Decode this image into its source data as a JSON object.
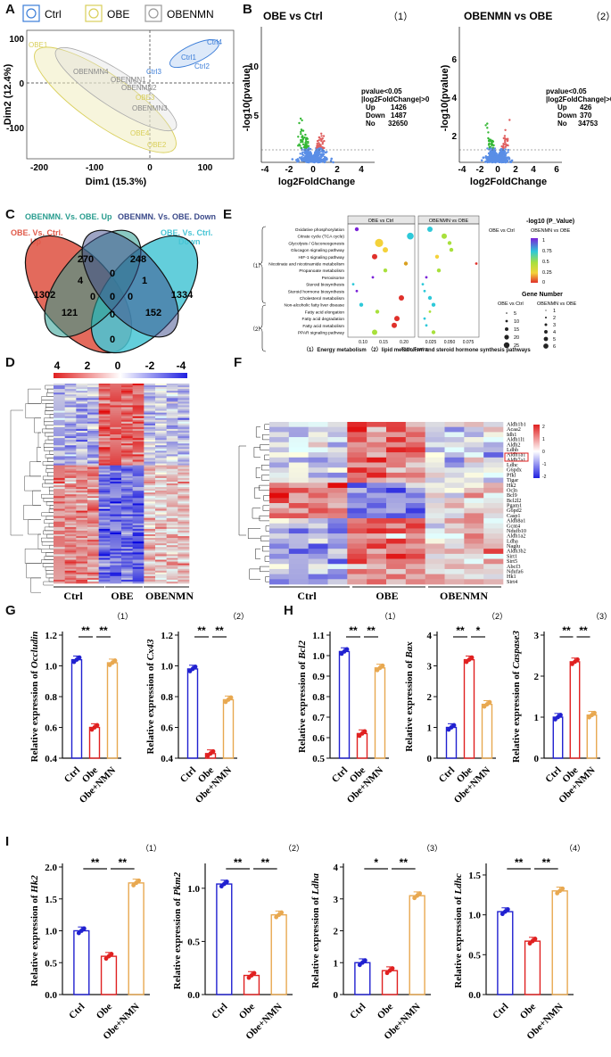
{
  "panels": {
    "A": "A",
    "B": "B",
    "C": "C",
    "D": "D",
    "E": "E",
    "F": "F",
    "G": "G",
    "H": "H",
    "I": "I"
  },
  "colors": {
    "ctrl": "#3b7dd8",
    "obe": "#d9cf5a",
    "obenmn": "#999999",
    "up": "#e05050",
    "down": "#2db52d",
    "ns": "#5a8ee6",
    "bar_ctrl": "#2020d0",
    "bar_obe": "#e02020",
    "bar_nmn": "#e8a850"
  },
  "panelA": {
    "legend": [
      "Ctrl",
      "OBE",
      "OBENMN"
    ],
    "xlabel": "Dim1 (15.3%)",
    "ylabel": "Dim2 (12.4%)",
    "xticks": [
      "-200",
      "-100",
      "0",
      "100"
    ],
    "yticks": [
      "100",
      "0",
      "-100"
    ],
    "point_labels": {
      "ctrl": [
        "Ctrl4",
        "Ctrl1",
        "Ctrl2",
        "Ctrl3"
      ],
      "obe": [
        "OBE1",
        "OBE3",
        "OBE4",
        "OBE2"
      ],
      "obenmn": [
        "OBENMN4",
        "OBENMN1",
        "OBENMN2",
        "OBENMN3"
      ]
    }
  },
  "panelB": {
    "plots": [
      {
        "title": "OBE vs Ctrl",
        "num": "（1）",
        "xlabel": "log2FoldChange",
        "ylabel": "-log10(pvalue)",
        "xticks": [
          "-4",
          "-2",
          "0",
          "2",
          "4"
        ],
        "yticks": [
          "10",
          "5"
        ],
        "stats": [
          "pvalue<0.05",
          "|log2FoldChange|>0",
          "Up",
          "1426",
          "Down",
          "1487",
          "No",
          "32650"
        ]
      },
      {
        "title": "OBENMN vs OBE",
        "num": "（2）",
        "xlabel": "log2FoldChange",
        "ylabel": "-log10(pvalue)",
        "xticks": [
          "-4",
          "-2",
          "0",
          "2",
          "4",
          "6"
        ],
        "yticks": [
          "6",
          "4",
          "2"
        ],
        "stats": [
          "pvalue<0.05",
          "|log2FoldChange|>0",
          "Up",
          "426",
          "Down",
          "370",
          "No",
          "34753"
        ]
      }
    ]
  },
  "panelC": {
    "sets": [
      "OBENMN. Vs. OBE. Up",
      "OBENMN. Vs. OBE. Down",
      "OBE. Vs. Ctrl.\nUp",
      "OBE. Vs. Ctrl.\nDown"
    ],
    "set_lines": [
      "OBENMN. Vs. OBE. Up",
      "OBENMN. Vs. OBE. Down",
      "OBE. Vs. Ctrl.",
      "Up",
      "OBE. Vs. Ctrl.",
      "Down"
    ],
    "counts": [
      "270",
      "248",
      "1302",
      "1334",
      "0",
      "4",
      "1",
      "0",
      "0",
      "121",
      "152",
      "0",
      "0",
      "0"
    ]
  },
  "panelD": {
    "scale": [
      "4",
      "2",
      "0",
      "-2",
      "-4"
    ],
    "groups": [
      "Ctrl",
      "OBE",
      "OBENMN"
    ]
  },
  "panelE": {
    "titles": [
      "OBE vs Ctrl",
      "OBENMN vs OBE"
    ],
    "pathways": [
      "Oxidative phosphorylation",
      "Citrate cycle (TCA cycle)",
      "Glycolysis / Gluconeogenesis",
      "Glucagon signaling pathway",
      "HIF-1 signaling pathway",
      "Nicotinate and nicotinamide metabolism",
      "Propanoate metabolism",
      "Peroxisome",
      "Steroid biosynthesis",
      "Steroid hormone biosynthesis",
      "Cholesterol metabolism",
      "Non-alcoholic fatty liver disease",
      "Fatty acid elongation",
      "Fatty acid degradation",
      "Fatty acid metabolism",
      "PPAR signaling pathway"
    ],
    "group_labels": [
      "（1）",
      "（2）"
    ],
    "xticks1": [
      "0.10",
      "0.15",
      "0.20"
    ],
    "xticks2": [
      "0.025",
      "0.050",
      "0.075"
    ],
    "xlabel": "Rich_Factor",
    "pval_title": "-log10 (P_Value)",
    "pval_sub": [
      "OBE vs Ctrl",
      "OBENMN vs OBE"
    ],
    "pval_ticks": [
      "1",
      "0.75",
      "0.5",
      "0.25",
      "0"
    ],
    "gene_title": "Gene Number",
    "gene_sub": [
      "OBE vs Ctrl",
      "OBENMN vs OBE"
    ],
    "gene_left": [
      "5",
      "10",
      "15",
      "20",
      "25"
    ],
    "gene_right": [
      "1",
      "2",
      "3",
      "4",
      "5",
      "6"
    ],
    "caption": "（1）Energy metabolism （2）lipid metabolism and steroid hormone synthesis pathways"
  },
  "panelF": {
    "genes": [
      "Aldh1b1",
      "Acaa2",
      "Idh1",
      "Aldh1l1",
      "Aldh2",
      "Ldhb",
      "Aldh1a1",
      "Aldh7a1",
      "Ldhc",
      "G6pdx",
      "Pfkl",
      "Tigar",
      "Hk2",
      "Ocln",
      "Bcl9",
      "Bcl2l2",
      "Pgam1",
      "G6pd2",
      "Casp1",
      "Aldh8a1",
      "Gcnt4",
      "Ndufb10",
      "Aldh1a2",
      "Ldha",
      "Naglu",
      "Aldh3b2",
      "Sirt1",
      "Sirt5",
      "Abcf3",
      "Ndufa6",
      "Hk1",
      "Sirt4"
    ],
    "scale": [
      "2",
      "1",
      "0",
      "-1",
      "-2"
    ],
    "groups": [
      "Ctrl",
      "OBE",
      "OBENMN"
    ]
  },
  "barcharts": [
    {
      "id": "G1",
      "num": "（1）",
      "gene": "Occludin",
      "yticks": [
        "1.2",
        "1.0",
        "0.8",
        "0.6",
        "0.4"
      ],
      "ymin": 0.4,
      "ymax": 1.2,
      "values": [
        1.04,
        0.6,
        1.02
      ],
      "sig": [
        "**",
        "**"
      ],
      "cats": [
        "Ctrl",
        "Obe",
        "Obe+NMN"
      ]
    },
    {
      "id": "G2",
      "num": "（2）",
      "gene": "Cx43",
      "yticks": [
        "1.2",
        "1.0",
        "0.8",
        "0.6",
        "0.4"
      ],
      "ymin": 0.4,
      "ymax": 1.2,
      "values": [
        0.98,
        0.43,
        0.78
      ],
      "sig": [
        "**",
        "**"
      ],
      "cats": [
        "Ctrl",
        "Obe",
        "Obe+NMN"
      ]
    },
    {
      "id": "H1",
      "num": "（1）",
      "gene": "Bcl2",
      "yticks": [
        "1.1",
        "1.0",
        "0.9",
        "0.8",
        "0.7",
        "0.6",
        "0.5"
      ],
      "ymin": 0.5,
      "ymax": 1.1,
      "values": [
        1.02,
        0.62,
        0.94
      ],
      "sig": [
        "**",
        "**"
      ],
      "cats": [
        "Ctrl",
        "Obe",
        "Obe+NMN"
      ]
    },
    {
      "id": "H2",
      "num": "（2）",
      "gene": "Bax",
      "yticks": [
        "4",
        "3",
        "2",
        "1",
        "0"
      ],
      "ymin": 0,
      "ymax": 4,
      "values": [
        1.0,
        3.2,
        1.75
      ],
      "sig": [
        "**",
        "*"
      ],
      "cats": [
        "Ctrl",
        "Obe",
        "Obe+NMN"
      ]
    },
    {
      "id": "H3",
      "num": "（3）",
      "gene": "Caspase3",
      "yticks": [
        "3",
        "2",
        "1",
        "0"
      ],
      "ymin": 0,
      "ymax": 3,
      "values": [
        1.0,
        2.35,
        1.05
      ],
      "sig": [
        "**",
        "**"
      ],
      "cats": [
        "Ctrl",
        "Obe",
        "Obe+NMN"
      ]
    },
    {
      "id": "I1",
      "num": "（1）",
      "gene": "Hk2",
      "yticks": [
        "2.0",
        "1.5",
        "1.0",
        "0.5",
        "0.0"
      ],
      "ymin": 0,
      "ymax": 2.0,
      "values": [
        1.0,
        0.6,
        1.75
      ],
      "sig": [
        "**",
        "**"
      ],
      "cats": [
        "Ctrl",
        "Obe",
        "Obe+NMN"
      ]
    },
    {
      "id": "I2",
      "num": "（2）",
      "gene": "Pkm2",
      "yticks": [
        "1.0",
        "0.5",
        "0.0"
      ],
      "ymin": 0,
      "ymax": 1.2,
      "values": [
        1.04,
        0.18,
        0.75
      ],
      "sig": [
        "**",
        "**"
      ],
      "cats": [
        "Ctrl",
        "Obe",
        "Obe+NMN"
      ]
    },
    {
      "id": "I3",
      "num": "（3）",
      "gene": "Ldha",
      "yticks": [
        "4",
        "3",
        "2",
        "1",
        "0"
      ],
      "ymin": 0,
      "ymax": 4,
      "values": [
        1.0,
        0.75,
        3.1
      ],
      "sig": [
        "*",
        "**"
      ],
      "cats": [
        "Ctrl",
        "Obe",
        "Obe+NMN"
      ]
    },
    {
      "id": "I4",
      "num": "（4）",
      "gene": "Ldhc",
      "yticks": [
        "1.5",
        "1.0",
        "0.5",
        "0.0"
      ],
      "ymin": 0,
      "ymax": 1.6,
      "values": [
        1.04,
        0.67,
        1.3
      ],
      "sig": [
        "**",
        "**"
      ],
      "cats": [
        "Ctrl",
        "Obe",
        "Obe+NMN"
      ]
    }
  ],
  "ylabel_prefix": "Relative expression of"
}
